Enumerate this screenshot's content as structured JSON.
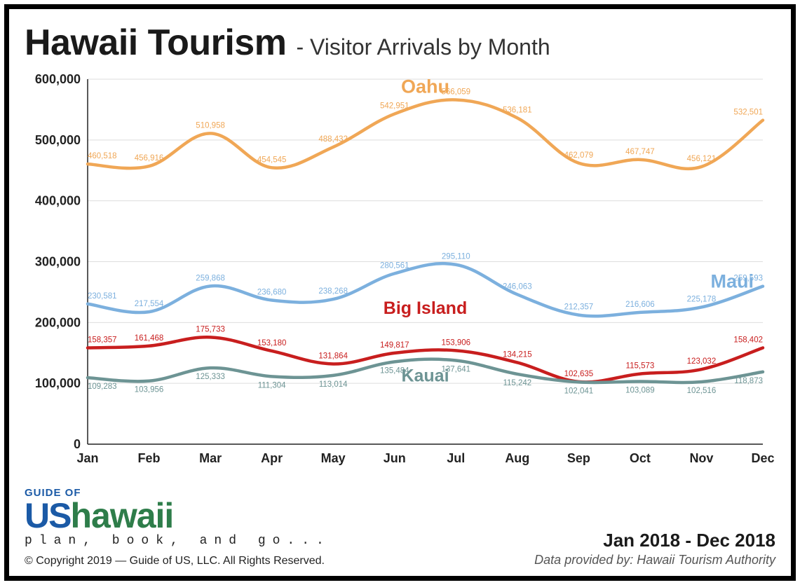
{
  "header": {
    "title_main": "Hawaii Tourism",
    "title_sub": "- Visitor Arrivals by Month"
  },
  "chart": {
    "type": "line",
    "categories": [
      "Jan",
      "Feb",
      "Mar",
      "Apr",
      "May",
      "Jun",
      "Jul",
      "Aug",
      "Sep",
      "Oct",
      "Nov",
      "Dec"
    ],
    "ylim": [
      0,
      600000
    ],
    "ytick_step": 100000,
    "ytick_labels": [
      "0",
      "100,000",
      "200,000",
      "300,000",
      "400,000",
      "500,000",
      "600,000"
    ],
    "background_color": "#ffffff",
    "grid_color": "#dddddd",
    "axis_color": "#222222",
    "line_width": 4.5,
    "label_fontsize": 11.5,
    "tick_fontsize": 18,
    "smooth": true,
    "series": [
      {
        "name": "Oahu",
        "label": "Oahu",
        "color": "#f0a756",
        "label_fontsize": 27,
        "label_pos": {
          "after_index": 5,
          "dy": -30
        },
        "data_label_position": "above",
        "values": [
          460518,
          456916,
          510958,
          454545,
          488432,
          542951,
          566059,
          536181,
          462079,
          467747,
          456121,
          532501
        ]
      },
      {
        "name": "Maui",
        "label": "Maui",
        "color": "#7cb0de",
        "label_fontsize": 27,
        "label_pos": {
          "after_index": 10,
          "dy": -28
        },
        "data_label_position": "above",
        "values": [
          230581,
          217554,
          259868,
          236680,
          238268,
          280561,
          295110,
          246063,
          212357,
          216606,
          225178,
          259593
        ]
      },
      {
        "name": "Big Island",
        "label": "Big Island",
        "color": "#c81e1e",
        "label_fontsize": 25,
        "label_pos": {
          "after_index": 5,
          "dy": -56
        },
        "data_label_position": "above",
        "values": [
          158357,
          161468,
          175733,
          153180,
          131864,
          149817,
          153906,
          134215,
          102635,
          115573,
          123032,
          158402
        ]
      },
      {
        "name": "Kauai",
        "label": "Kauai",
        "color": "#6d9494",
        "label_fontsize": 25,
        "label_pos": {
          "after_index": 5,
          "dy": 28
        },
        "data_label_position": "below",
        "values": [
          109283,
          103956,
          125333,
          111304,
          113014,
          135484,
          137641,
          115242,
          102041,
          103089,
          102516,
          118873
        ]
      }
    ]
  },
  "footer": {
    "logo_top": "GUIDE OF",
    "logo_us": "US",
    "logo_hawaii": "hawaii",
    "logo_tag": "plan, book, and go...",
    "copyright": "© Copyright 2019 — Guide of US, LLC. All Rights Reserved.",
    "date_range": "Jan 2018 - Dec 2018",
    "data_source": "Data provided by: Hawaii Tourism Authority"
  },
  "layout": {
    "outer_border_color": "#000000",
    "outer_border_width": 7
  }
}
